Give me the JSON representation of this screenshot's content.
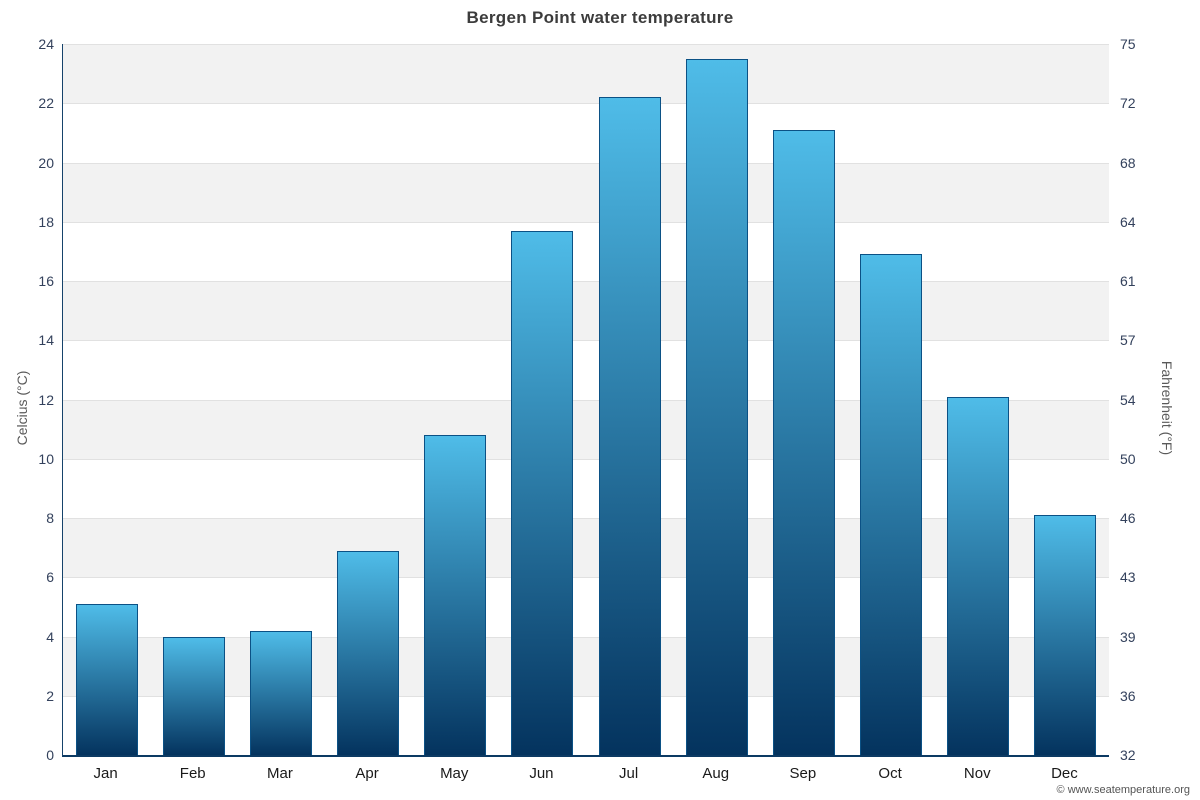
{
  "chart_data": {
    "type": "bar",
    "title": "Bergen Point water temperature",
    "categories": [
      "Jan",
      "Feb",
      "Mar",
      "Apr",
      "May",
      "Jun",
      "Jul",
      "Aug",
      "Sep",
      "Oct",
      "Nov",
      "Dec"
    ],
    "values": [
      5.1,
      4.0,
      4.2,
      6.9,
      10.8,
      17.7,
      22.2,
      23.5,
      21.1,
      16.9,
      12.1,
      8.1
    ],
    "ylabel_left": "Celcius (°C)",
    "ylabel_right": "Fahrenheit (°F)",
    "ylim": [
      0,
      24
    ],
    "yticks_left": [
      0,
      2,
      4,
      6,
      8,
      10,
      12,
      14,
      16,
      18,
      20,
      22,
      24
    ],
    "yticks_right": [
      "32",
      "36",
      "39",
      "43",
      "46",
      "50",
      "54",
      "57",
      "61",
      "64",
      "68",
      "72",
      "75"
    ],
    "grid": true,
    "legend": "none",
    "colors": {
      "bar_gradient_top": "#4fbce8",
      "bar_gradient_bottom": "#04335e",
      "bar_border": "#0b5185",
      "band_fill": "#f2f2f2",
      "gridline": "#e1e1e1",
      "axis": "#16436b"
    }
  },
  "footer": {
    "copyright": "© www.seatemperature.org"
  }
}
